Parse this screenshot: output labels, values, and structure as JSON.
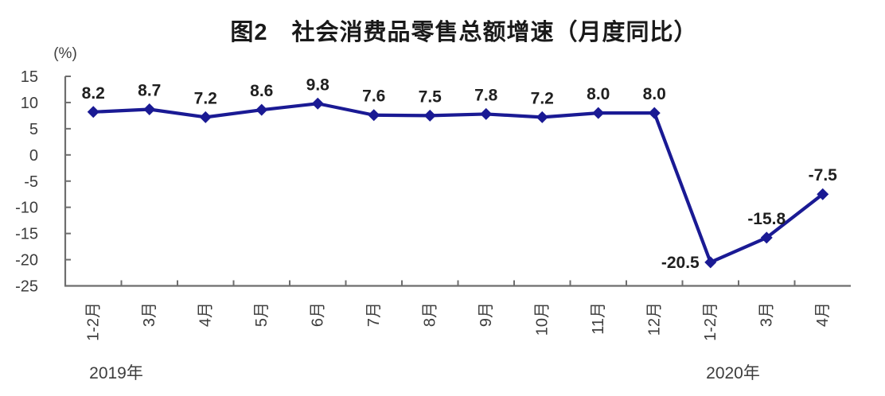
{
  "figure": {
    "title": "图2　社会消费品零售总额增速（月度同比）",
    "unit_label": "(%)"
  },
  "chart_data": {
    "type": "line",
    "categories": [
      "1-2月",
      "3月",
      "4月",
      "5月",
      "6月",
      "7月",
      "8月",
      "9月",
      "10月",
      "11月",
      "12月",
      "1-2月",
      "3月",
      "4月"
    ],
    "values": [
      8.2,
      8.7,
      7.2,
      8.6,
      9.8,
      7.6,
      7.5,
      7.8,
      7.2,
      8.0,
      8.0,
      -20.5,
      -15.8,
      -7.5
    ],
    "data_labels": [
      "8.2",
      "8.7",
      "7.2",
      "8.6",
      "9.8",
      "7.6",
      "7.5",
      "7.8",
      "7.2",
      "8.0",
      "8.0",
      "-20.5",
      "-15.8",
      "-7.5"
    ],
    "y_ticks": [
      15,
      10,
      5,
      0,
      -5,
      -10,
      -15,
      -20,
      -25
    ],
    "ylim": [
      -25,
      15
    ],
    "xlabel": "",
    "ylabel": "(%)",
    "title": "图2　社会消费品零售总额增速（月度同比）",
    "year_groups": [
      {
        "label": "2019年",
        "span": [
          0,
          10
        ]
      },
      {
        "label": "2020年",
        "span": [
          11,
          13
        ]
      }
    ],
    "grid": false,
    "legend": false,
    "marker": "diamond",
    "series_color": "#1a1a94",
    "axis_color": "#6e6e6e",
    "tick_label_color": "#3d3d3d",
    "data_label_color": "#1f1f1f",
    "label_placements": {
      "11": "left"
    }
  }
}
